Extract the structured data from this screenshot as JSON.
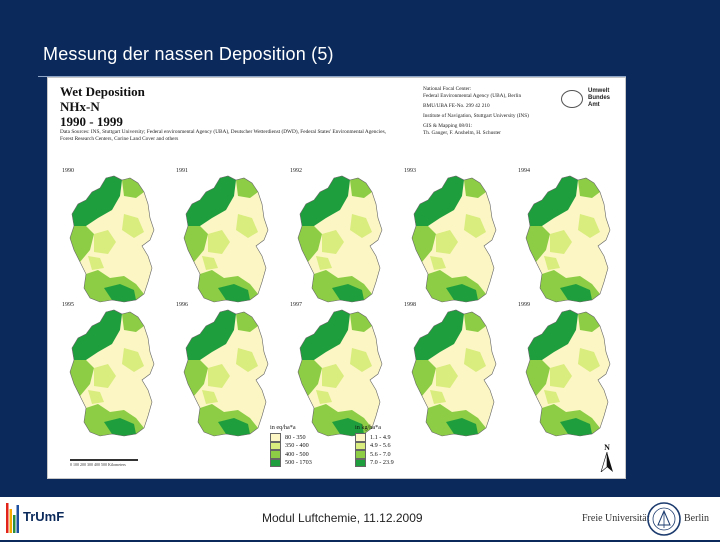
{
  "slide": {
    "title": "Messung der nassen Deposition (5)",
    "footer": "Modul Luftchemie, 11.12.2009"
  },
  "figure": {
    "title_lines": [
      "Wet Deposition",
      "NHx-N",
      "1990 - 1999"
    ],
    "sources": "Data Sources: INS, Stuttgart University; Federal environmental Agency (UBA), Deutscher Wetterdienst (DWD), Federal States' Environmental Agencies, Forest Research Centers, Corine Land Cover and others",
    "credits": [
      "National Focal Center:",
      "Federal Environmental Agency (UBA), Berlin",
      "BMU/UBA FE-No. 299 42 210",
      "Institute of Navigation, Stuttgart University (INS)",
      "GIS & Mapping 08/01:",
      "Th. Gauger, F. Anshelm, H. Schuster"
    ],
    "agency_logo_text": [
      "Umwelt",
      "Bundes",
      "Amt"
    ],
    "years_row1": [
      "1990",
      "1991",
      "1992",
      "1993",
      "1994"
    ],
    "years_row2": [
      "1995",
      "1996",
      "1997",
      "1998",
      "1999"
    ],
    "legend_eq": {
      "heading": "in eq/ha*a",
      "items": [
        "80 -   350",
        "350 -   400",
        "400 -   500",
        "500 - 1703"
      ]
    },
    "legend_kg": {
      "heading": "in kg/ha*a",
      "items": [
        "1.1 -   4.9",
        "4.9 -   5.6",
        "5.6 -   7.0",
        "7.0 - 23.9"
      ]
    },
    "legend_colors": [
      "#fbf6c4",
      "#d9ec7e",
      "#8ccd45",
      "#1f9e3e"
    ],
    "scale_label": "0    100   200   300   400   500  Kilometers",
    "north_label": "N"
  },
  "footer_logos": {
    "left": "TrUmF",
    "right_prefix": "Freie Universität",
    "right_suffix": "Berlin"
  }
}
